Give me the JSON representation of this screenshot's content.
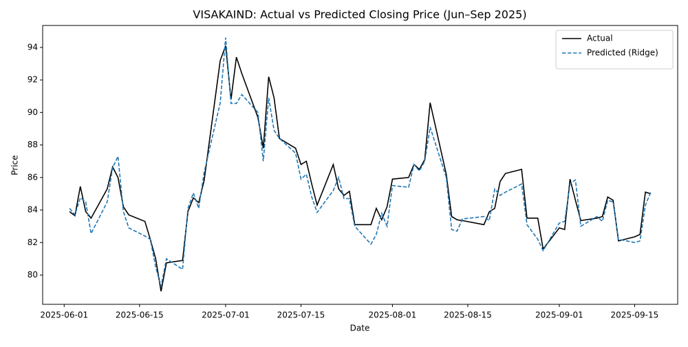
{
  "chart_data": {
    "type": "line",
    "title": "VISAKAIND: Actual vs Predicted Closing Price (Jun–Sep 2025)",
    "x_label": "Date",
    "y_label": "Price",
    "x": [
      "2025-06-02",
      "2025-06-03",
      "2025-06-04",
      "2025-06-05",
      "2025-06-06",
      "2025-06-09",
      "2025-06-10",
      "2025-06-11",
      "2025-06-12",
      "2025-06-13",
      "2025-06-16",
      "2025-06-17",
      "2025-06-18",
      "2025-06-19",
      "2025-06-20",
      "2025-06-23",
      "2025-06-24",
      "2025-06-25",
      "2025-06-26",
      "2025-06-27",
      "2025-06-30",
      "2025-07-01",
      "2025-07-02",
      "2025-07-03",
      "2025-07-04",
      "2025-07-07",
      "2025-07-08",
      "2025-07-09",
      "2025-07-10",
      "2025-07-11",
      "2025-07-14",
      "2025-07-15",
      "2025-07-16",
      "2025-07-17",
      "2025-07-18",
      "2025-07-21",
      "2025-07-22",
      "2025-07-23",
      "2025-07-24",
      "2025-07-25",
      "2025-07-28",
      "2025-07-29",
      "2025-07-30",
      "2025-07-31",
      "2025-08-01",
      "2025-08-04",
      "2025-08-05",
      "2025-08-06",
      "2025-08-07",
      "2025-08-08",
      "2025-08-11",
      "2025-08-12",
      "2025-08-13",
      "2025-08-14",
      "2025-08-18",
      "2025-08-19",
      "2025-08-20",
      "2025-08-21",
      "2025-08-22",
      "2025-08-25",
      "2025-08-26",
      "2025-08-28",
      "2025-08-29",
      "2025-09-01",
      "2025-09-02",
      "2025-09-03",
      "2025-09-04",
      "2025-09-05",
      "2025-09-08",
      "2025-09-09",
      "2025-09-10",
      "2025-09-11",
      "2025-09-12",
      "2025-09-15",
      "2025-09-16",
      "2025-09-17",
      "2025-09-18"
    ],
    "series": [
      {
        "name": "Actual",
        "color": "#000000",
        "dash": false,
        "values": [
          83.9,
          83.65,
          85.45,
          83.9,
          83.5,
          85.3,
          86.65,
          86.0,
          84.2,
          83.7,
          83.3,
          82.2,
          81.0,
          79.0,
          80.75,
          80.9,
          83.9,
          84.75,
          84.45,
          85.8,
          93.2,
          94.1,
          90.8,
          93.4,
          92.4,
          89.7,
          87.8,
          92.2,
          90.9,
          88.4,
          87.8,
          86.8,
          87.0,
          85.6,
          84.3,
          86.8,
          85.3,
          84.9,
          85.15,
          83.1,
          83.1,
          84.1,
          83.4,
          84.2,
          85.9,
          86.0,
          86.8,
          86.5,
          87.1,
          90.6,
          86.2,
          83.6,
          83.4,
          83.35,
          83.1,
          83.9,
          84.1,
          85.75,
          86.25,
          86.5,
          83.5,
          83.5,
          81.6,
          82.9,
          82.8,
          85.9,
          84.6,
          83.35,
          83.5,
          83.6,
          84.8,
          84.6,
          82.1,
          82.35,
          82.5,
          85.1,
          85.0
        ]
      },
      {
        "name": "Predicted (Ridge)",
        "color": "#1f77b4",
        "dash": true,
        "values": [
          84.1,
          83.7,
          84.75,
          84.5,
          82.55,
          84.5,
          86.6,
          87.3,
          83.9,
          82.9,
          82.4,
          82.2,
          80.5,
          79.3,
          81.0,
          80.35,
          84.1,
          85.05,
          84.1,
          86.3,
          90.6,
          94.6,
          90.55,
          90.55,
          91.1,
          90.0,
          87.0,
          90.9,
          88.9,
          88.4,
          87.5,
          85.9,
          86.2,
          84.8,
          83.85,
          85.2,
          86.0,
          84.7,
          84.7,
          83.0,
          81.9,
          82.5,
          83.8,
          83.0,
          85.5,
          85.4,
          86.8,
          86.4,
          87.0,
          89.1,
          86.0,
          82.8,
          82.7,
          83.45,
          83.6,
          83.35,
          85.3,
          84.9,
          85.1,
          85.6,
          83.1,
          82.2,
          81.5,
          83.2,
          83.3,
          85.6,
          85.85,
          83.0,
          83.6,
          83.3,
          84.6,
          84.5,
          82.2,
          82.0,
          82.1,
          84.3,
          85.1
        ]
      }
    ],
    "xlim": [
      "2025-05-28",
      "2025-09-23"
    ],
    "xticks": [
      "2025-06-01",
      "2025-06-15",
      "2025-07-01",
      "2025-07-15",
      "2025-08-01",
      "2025-08-15",
      "2025-09-01",
      "2025-09-15"
    ],
    "ylim": [
      78.2,
      95.35
    ],
    "yticks": [
      80,
      82,
      84,
      86,
      88,
      90,
      92,
      94
    ],
    "grid": false,
    "legend": "upper right"
  }
}
